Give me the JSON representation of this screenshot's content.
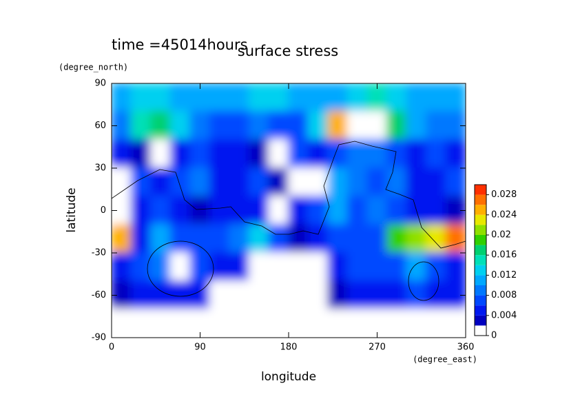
{
  "chart_data": {
    "type": "contour",
    "title": "surface stress",
    "subtitle": "time =45014hours",
    "x_label": "longitude",
    "y_label": "latitude",
    "x_unit": "(degree_east)",
    "y_unit": "(degree_north)",
    "xlim": [
      0,
      360
    ],
    "xticks": [
      0,
      90,
      180,
      270,
      360
    ],
    "ylim": [
      -90,
      90
    ],
    "yticks": [
      -90,
      -60,
      -30,
      0,
      30,
      60,
      90
    ],
    "lon": [
      10,
      30,
      50,
      70,
      90,
      110,
      130,
      150,
      170,
      190,
      210,
      230,
      250,
      270,
      290,
      310,
      330,
      350
    ],
    "lat": [
      80,
      60,
      40,
      20,
      0,
      -20,
      -40,
      -60,
      -80
    ],
    "z": [
      [
        0.01,
        0.012,
        0.012,
        0.01,
        0.01,
        0.01,
        0.01,
        0.012,
        0.012,
        0.01,
        0.01,
        0.01,
        0.012,
        0.014,
        0.012,
        0.01,
        0.01,
        0.01
      ],
      [
        0.008,
        0.014,
        0.016,
        0.012,
        0.008,
        0.006,
        0.006,
        0.008,
        0.006,
        0.006,
        0.012,
        0.024,
        0.03,
        0.03,
        0.016,
        0.01,
        0.008,
        0.008
      ],
      [
        0.004,
        0.002,
        0,
        0.004,
        0.006,
        0.004,
        0.004,
        0.002,
        0,
        0.006,
        0.004,
        0.006,
        0.008,
        0.008,
        0.006,
        0.004,
        0.006,
        0.004
      ],
      [
        0,
        0.006,
        0.004,
        0.006,
        0.008,
        0.004,
        0.004,
        0.006,
        0.002,
        0,
        0,
        0.01,
        0.008,
        0.006,
        0.008,
        0.004,
        0.004,
        0.006
      ],
      [
        0,
        0.004,
        0.006,
        0.004,
        0.002,
        0.004,
        0.004,
        0.004,
        0,
        0.004,
        0.006,
        0.01,
        0.006,
        0.008,
        0.006,
        0.004,
        0.004,
        0.002
      ],
      [
        0.024,
        0.004,
        0.01,
        0.006,
        0.006,
        0.006,
        0.008,
        0.012,
        0.006,
        0.002,
        0.004,
        0.006,
        0.006,
        0.006,
        0.018,
        0.02,
        0.022,
        0.026
      ],
      [
        0.004,
        0.006,
        0.008,
        0,
        0.006,
        0.004,
        0.004,
        0,
        0,
        0,
        0,
        0.004,
        0.006,
        0.006,
        0.006,
        0.01,
        0.006,
        0.004
      ],
      [
        0.002,
        0.004,
        0.004,
        0.004,
        0.004,
        0,
        0,
        0,
        0,
        0,
        0,
        0.002,
        0.004,
        0.004,
        0.004,
        0.006,
        0.004,
        0.004
      ],
      [
        0,
        0,
        0,
        0,
        0,
        0,
        0,
        0,
        0,
        0,
        0,
        0,
        0,
        0,
        0,
        0,
        0,
        0
      ]
    ],
    "levels": [
      0,
      0.002,
      0.004,
      0.006,
      0.008,
      0.01,
      0.012,
      0.014,
      0.016,
      0.018,
      0.02,
      0.022,
      0.024,
      0.026,
      0.028,
      0.03
    ],
    "colors": [
      "#ffffff",
      "#0000c0",
      "#0018f0",
      "#0048ff",
      "#0078ff",
      "#00a8ff",
      "#00d0f0",
      "#00e0b8",
      "#00d070",
      "#30d000",
      "#90e000",
      "#e8e800",
      "#ffb000",
      "#ff7000",
      "#ff3000"
    ],
    "over_color": "#ffffff",
    "colorbar_ticks": [
      0,
      0.004,
      0.008,
      0.012,
      0.016,
      0.02,
      0.024,
      0.028
    ]
  }
}
